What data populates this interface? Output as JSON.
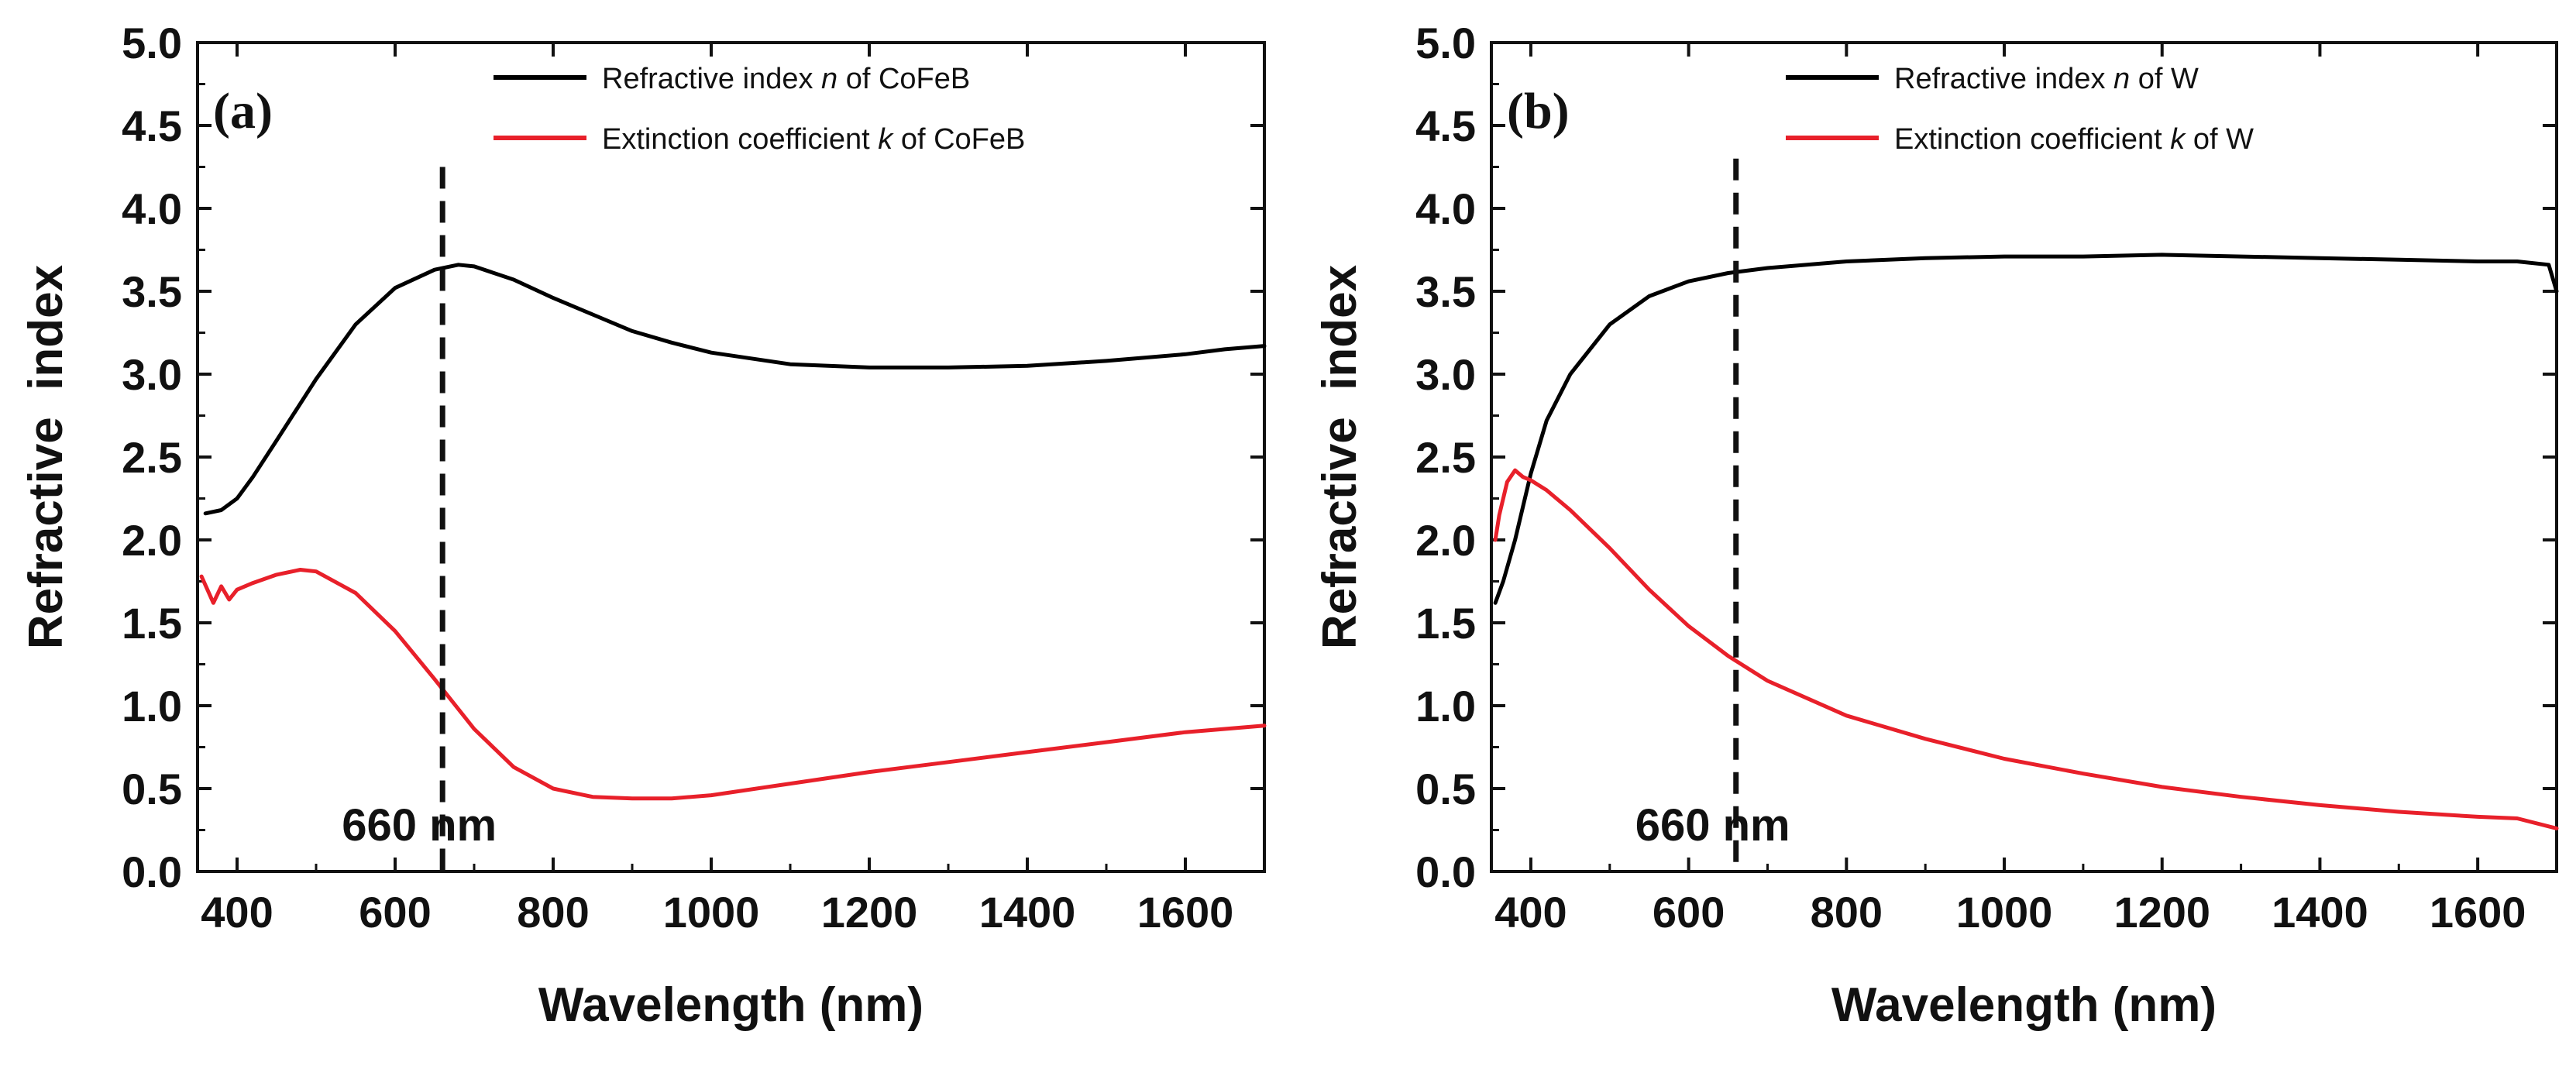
{
  "chart_data": [
    {
      "type": "line",
      "panel_label": "(a)",
      "xlabel": "Wavelength (nm)",
      "ylabel": "Refractive  index",
      "xlim": [
        350,
        1700
      ],
      "ylim": [
        0.0,
        5.0
      ],
      "xticks": [
        400,
        600,
        800,
        1000,
        1200,
        1400,
        1600
      ],
      "yticks": [
        "0.0",
        "0.5",
        "1.0",
        "1.5",
        "2.0",
        "2.5",
        "3.0",
        "3.5",
        "4.0",
        "4.5",
        "5.0"
      ],
      "legend": {
        "placement": "top-right",
        "entries": [
          {
            "pre": "Refractive index ",
            "sym": "n",
            "post": " of CoFeB",
            "color": "#000000"
          },
          {
            "pre": "Extinction coefficient ",
            "sym": "k",
            "post": " of CoFeB",
            "color": "#e8202a"
          }
        ]
      },
      "annotation": {
        "text": "660 nm",
        "x": 660,
        "y_from": 0.55,
        "y_to": 4.25
      },
      "series": [
        {
          "name": "Refractive index n of CoFeB",
          "color": "#000000",
          "x": [
            360,
            380,
            400,
            420,
            450,
            500,
            550,
            600,
            650,
            680,
            700,
            750,
            800,
            850,
            900,
            950,
            1000,
            1100,
            1200,
            1300,
            1400,
            1500,
            1600,
            1650,
            1700
          ],
          "y": [
            2.16,
            2.18,
            2.25,
            2.38,
            2.6,
            2.97,
            3.3,
            3.52,
            3.63,
            3.66,
            3.65,
            3.57,
            3.46,
            3.36,
            3.26,
            3.19,
            3.13,
            3.06,
            3.04,
            3.04,
            3.05,
            3.08,
            3.12,
            3.15,
            3.17
          ]
        },
        {
          "name": "Extinction coefficient k of CoFeB",
          "color": "#e8202a",
          "x": [
            355,
            370,
            380,
            390,
            400,
            420,
            450,
            480,
            500,
            550,
            600,
            650,
            700,
            750,
            800,
            850,
            900,
            950,
            1000,
            1100,
            1200,
            1300,
            1400,
            1500,
            1600,
            1700
          ],
          "y": [
            1.78,
            1.62,
            1.72,
            1.64,
            1.7,
            1.74,
            1.79,
            1.82,
            1.81,
            1.68,
            1.45,
            1.16,
            0.86,
            0.63,
            0.5,
            0.45,
            0.44,
            0.44,
            0.46,
            0.53,
            0.6,
            0.66,
            0.72,
            0.78,
            0.84,
            0.88
          ]
        }
      ]
    },
    {
      "type": "line",
      "panel_label": "(b)",
      "xlabel": "Wavelength (nm)",
      "ylabel": "Refractive  index",
      "xlim": [
        350,
        1700
      ],
      "ylim": [
        0.0,
        5.0
      ],
      "xticks": [
        400,
        600,
        800,
        1000,
        1200,
        1400,
        1600
      ],
      "yticks": [
        "0.0",
        "0.5",
        "1.0",
        "1.5",
        "2.0",
        "2.5",
        "3.0",
        "3.5",
        "4.0",
        "4.5",
        "5.0"
      ],
      "legend": {
        "placement": "top-right",
        "entries": [
          {
            "pre": "Refractive index ",
            "sym": "n",
            "post": " of W",
            "color": "#000000"
          },
          {
            "pre": "Extinction coefficient ",
            "sym": "k",
            "post": " of W",
            "color": "#e8202a"
          }
        ]
      },
      "annotation": {
        "text": "660 nm",
        "x": 660,
        "y_from": 0.65,
        "y_to": 4.3
      },
      "series": [
        {
          "name": "Refractive index n of W",
          "color": "#000000",
          "x": [
            355,
            365,
            380,
            400,
            420,
            450,
            500,
            550,
            600,
            650,
            700,
            800,
            900,
            1000,
            1100,
            1200,
            1300,
            1400,
            1500,
            1600,
            1650,
            1690,
            1700
          ],
          "y": [
            1.62,
            1.75,
            2.0,
            2.4,
            2.72,
            3.0,
            3.3,
            3.47,
            3.56,
            3.61,
            3.64,
            3.68,
            3.7,
            3.71,
            3.71,
            3.72,
            3.71,
            3.7,
            3.69,
            3.68,
            3.68,
            3.66,
            3.5
          ]
        },
        {
          "name": "Extinction coefficient k of W",
          "color": "#e8202a",
          "x": [
            355,
            360,
            370,
            380,
            390,
            400,
            420,
            450,
            500,
            550,
            600,
            650,
            700,
            800,
            900,
            1000,
            1100,
            1200,
            1300,
            1400,
            1500,
            1600,
            1650,
            1700
          ],
          "y": [
            2.0,
            2.15,
            2.35,
            2.42,
            2.38,
            2.36,
            2.3,
            2.18,
            1.95,
            1.7,
            1.48,
            1.3,
            1.15,
            0.94,
            0.8,
            0.68,
            0.59,
            0.51,
            0.45,
            0.4,
            0.36,
            0.33,
            0.32,
            0.26
          ]
        }
      ]
    }
  ]
}
